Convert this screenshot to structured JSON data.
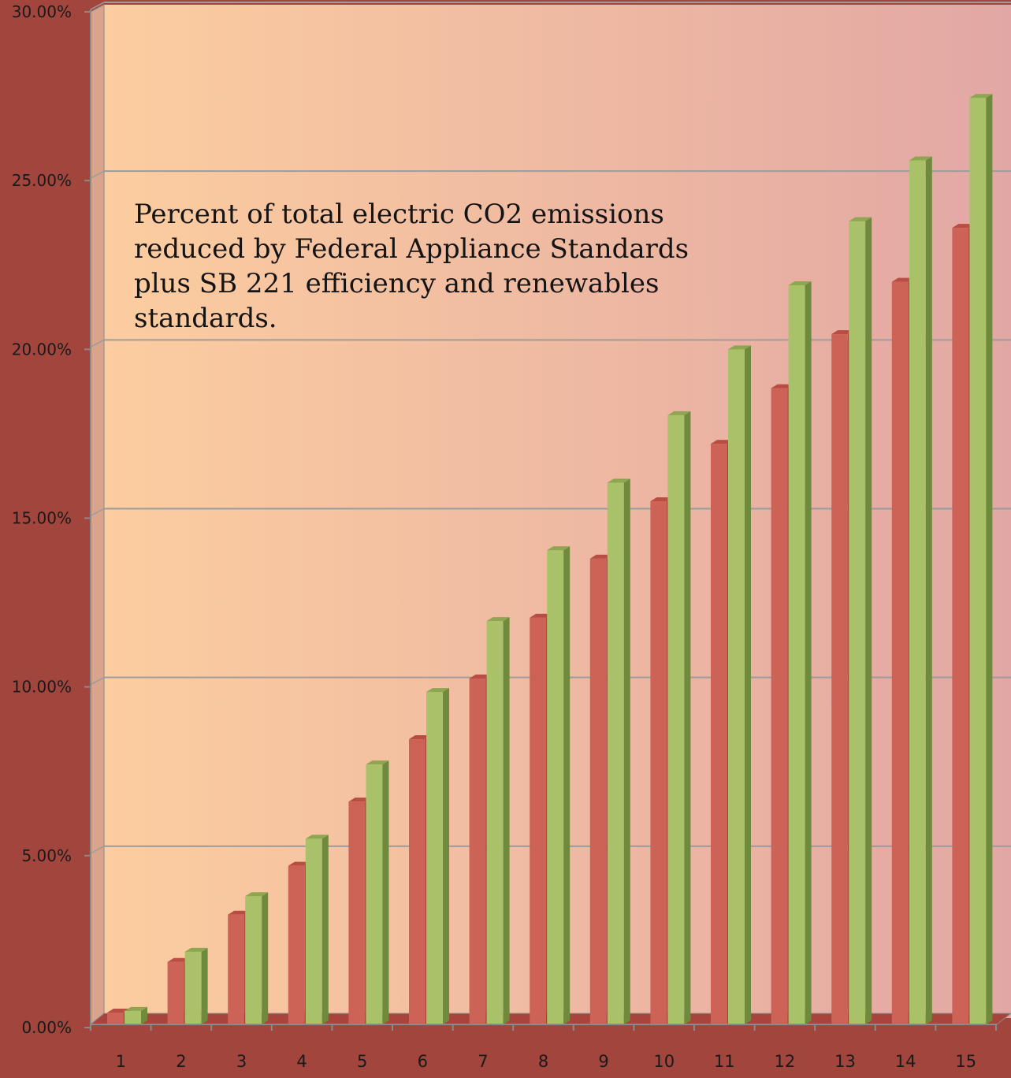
{
  "chart_data": {
    "type": "bar",
    "annotation": "Percent of total electric CO2 emissions reduced by Federal Appliance Standards plus SB 221 efficiency and renewables standards.",
    "categories": [
      "1",
      "2",
      "3",
      "4",
      "5",
      "6",
      "7",
      "8",
      "9",
      "10",
      "11",
      "12",
      "13",
      "14",
      "15"
    ],
    "series": [
      {
        "values": [
          0.35,
          1.85,
          3.25,
          4.7,
          6.6,
          8.45,
          10.25,
          12.05,
          13.8,
          15.5,
          17.2,
          18.85,
          20.45,
          22.0,
          23.6
        ]
      },
      {
        "values": [
          0.4,
          2.15,
          3.8,
          5.5,
          7.7,
          9.85,
          11.95,
          14.05,
          16.05,
          18.05,
          20.0,
          21.9,
          23.8,
          25.6,
          27.45
        ]
      }
    ],
    "colors": {
      "series1": "#cd6257",
      "series1_side": "#9c3f37",
      "series1_top": "#b84d44",
      "series2": "#a9c26a",
      "series2_side": "#6f8a3c",
      "series2_top": "#8ea552",
      "wall_left": "#fccda0",
      "wall_right": "#e2a7a4",
      "floor": "#a8443b",
      "gridline": "#9c9c9c",
      "outer": "#a2453d"
    },
    "ylim": [
      0,
      30
    ],
    "yticks": [
      0,
      5,
      10,
      15,
      20,
      25,
      30
    ],
    "ytick_labels": [
      "0.00%",
      "5.00%",
      "10.00%",
      "15.00%",
      "20.00%",
      "25.00%",
      "30.00%"
    ],
    "grid": true,
    "legend": "none"
  }
}
